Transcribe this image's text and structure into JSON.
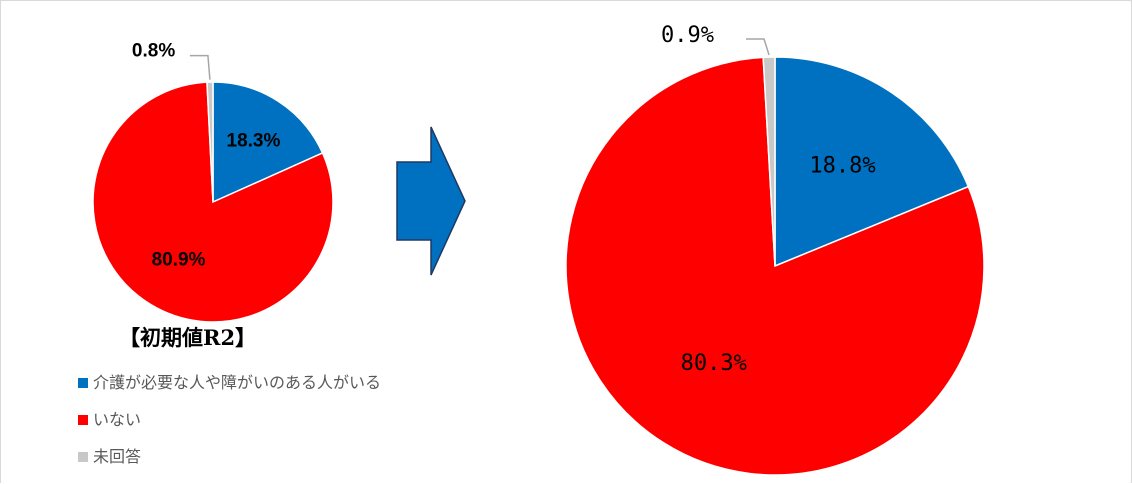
{
  "colors": {
    "care_needed": "#0070c0",
    "none": "#ff0000",
    "no_answer": "#c8c8c8",
    "arrow": "#0070c0"
  },
  "chart_data": [
    {
      "type": "pie",
      "title": "【初期値R2】",
      "slices": [
        {
          "label": "介護が必要な人や障がいのある人がいる",
          "value": 18.3,
          "value_label": "18.3%"
        },
        {
          "label": "いない",
          "value": 80.9,
          "value_label": "80.9%"
        },
        {
          "label": "未回答",
          "value": 0.8,
          "value_label": "0.8%"
        }
      ]
    },
    {
      "type": "pie",
      "title": "",
      "slices": [
        {
          "label": "介護が必要な人や障がいのある人がいる",
          "value": 18.8,
          "value_label": "18.8%"
        },
        {
          "label": "いない",
          "value": 80.3,
          "value_label": "80.3%"
        },
        {
          "label": "未回答",
          "value": 0.9,
          "value_label": "0.9%"
        }
      ]
    }
  ],
  "legend": {
    "items": [
      {
        "label": "介護が必要な人や障がいのある人がいる"
      },
      {
        "label": "いない"
      },
      {
        "label": "未回答"
      }
    ]
  }
}
